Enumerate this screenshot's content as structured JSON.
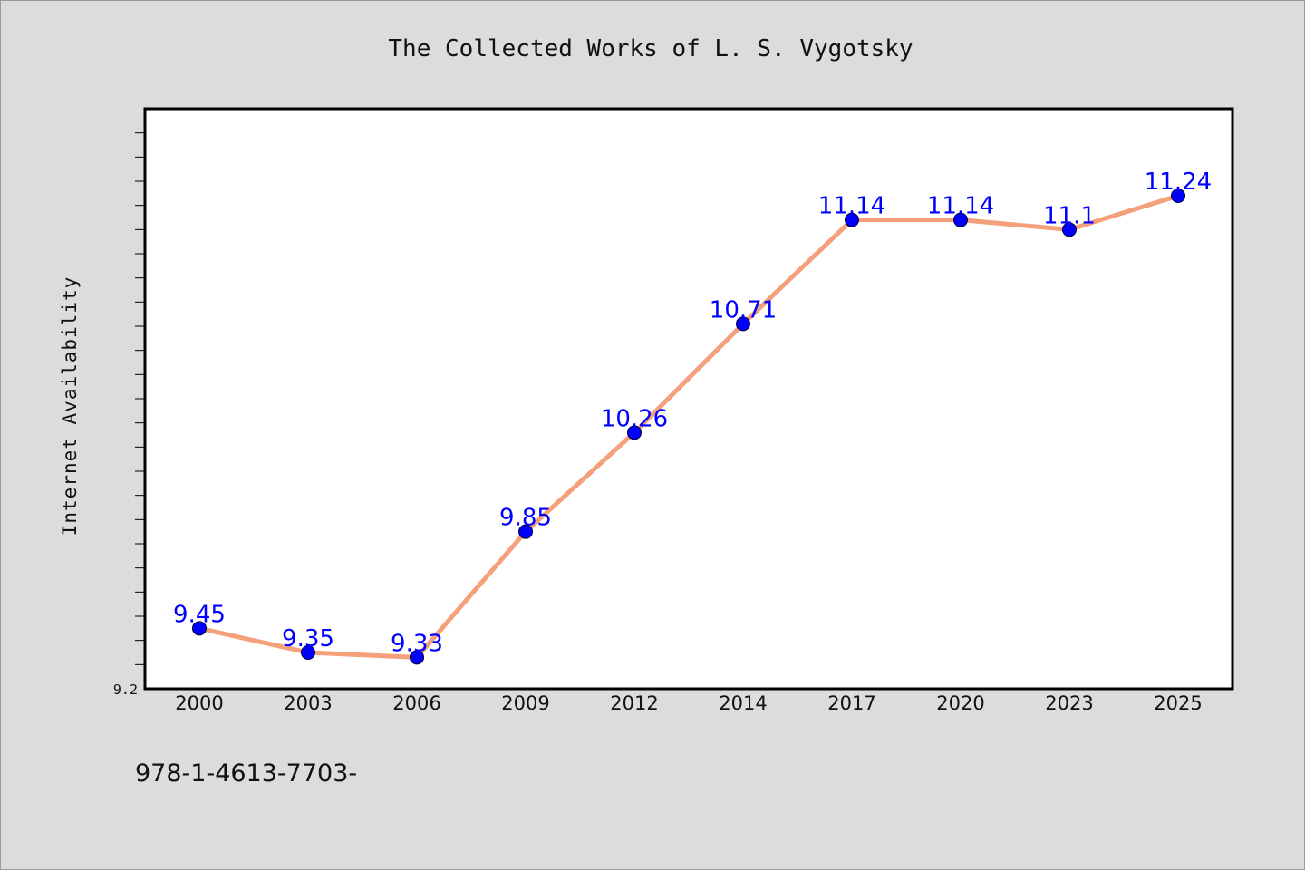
{
  "chart_data": {
    "type": "line",
    "title": "The Collected Works of L. S. Vygotsky",
    "xlabel": "",
    "ylabel": "Internet Availability",
    "categories": [
      "2000",
      "2003",
      "2006",
      "2009",
      "2012",
      "2014",
      "2017",
      "2020",
      "2023",
      "2025"
    ],
    "series": [
      {
        "values": [
          9.45,
          9.35,
          9.33,
          9.85,
          10.26,
          10.71,
          11.14,
          11.14,
          11.1,
          11.24
        ],
        "labels": [
          "9.45",
          "9.35",
          "9.33",
          "9.85",
          "10.26",
          "10.71",
          "11.14",
          "11.14",
          "11.1",
          "11.24"
        ]
      }
    ],
    "ylim": [
      9.2,
      11.6
    ],
    "ytick_labels": [
      "9.2"
    ],
    "grid": false,
    "line_color": "#f4a07a",
    "marker_color": "#0000ff",
    "data_label_color": "#0000ff"
  },
  "footer_text": "978-1-4613-7703-"
}
